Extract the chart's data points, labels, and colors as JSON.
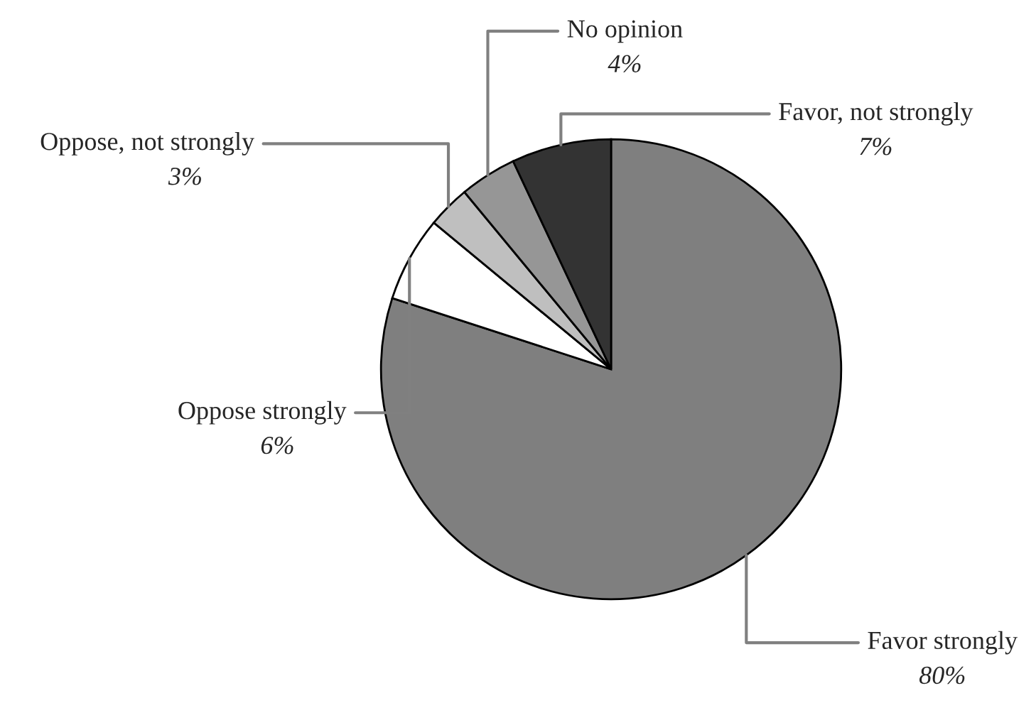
{
  "chart_data": {
    "type": "pie",
    "categories": [
      "Favor strongly",
      "Oppose strongly",
      "Oppose, not strongly",
      "No opinion",
      "Favor, not strongly"
    ],
    "values": [
      80,
      6,
      3,
      4,
      7
    ],
    "value_labels": [
      "80%",
      "6%",
      "3%",
      "4%",
      "7%"
    ],
    "colors": [
      "#7f7f7f",
      "#ffffff",
      "#bfbfbf",
      "#969696",
      "#333333"
    ],
    "legend": false
  }
}
